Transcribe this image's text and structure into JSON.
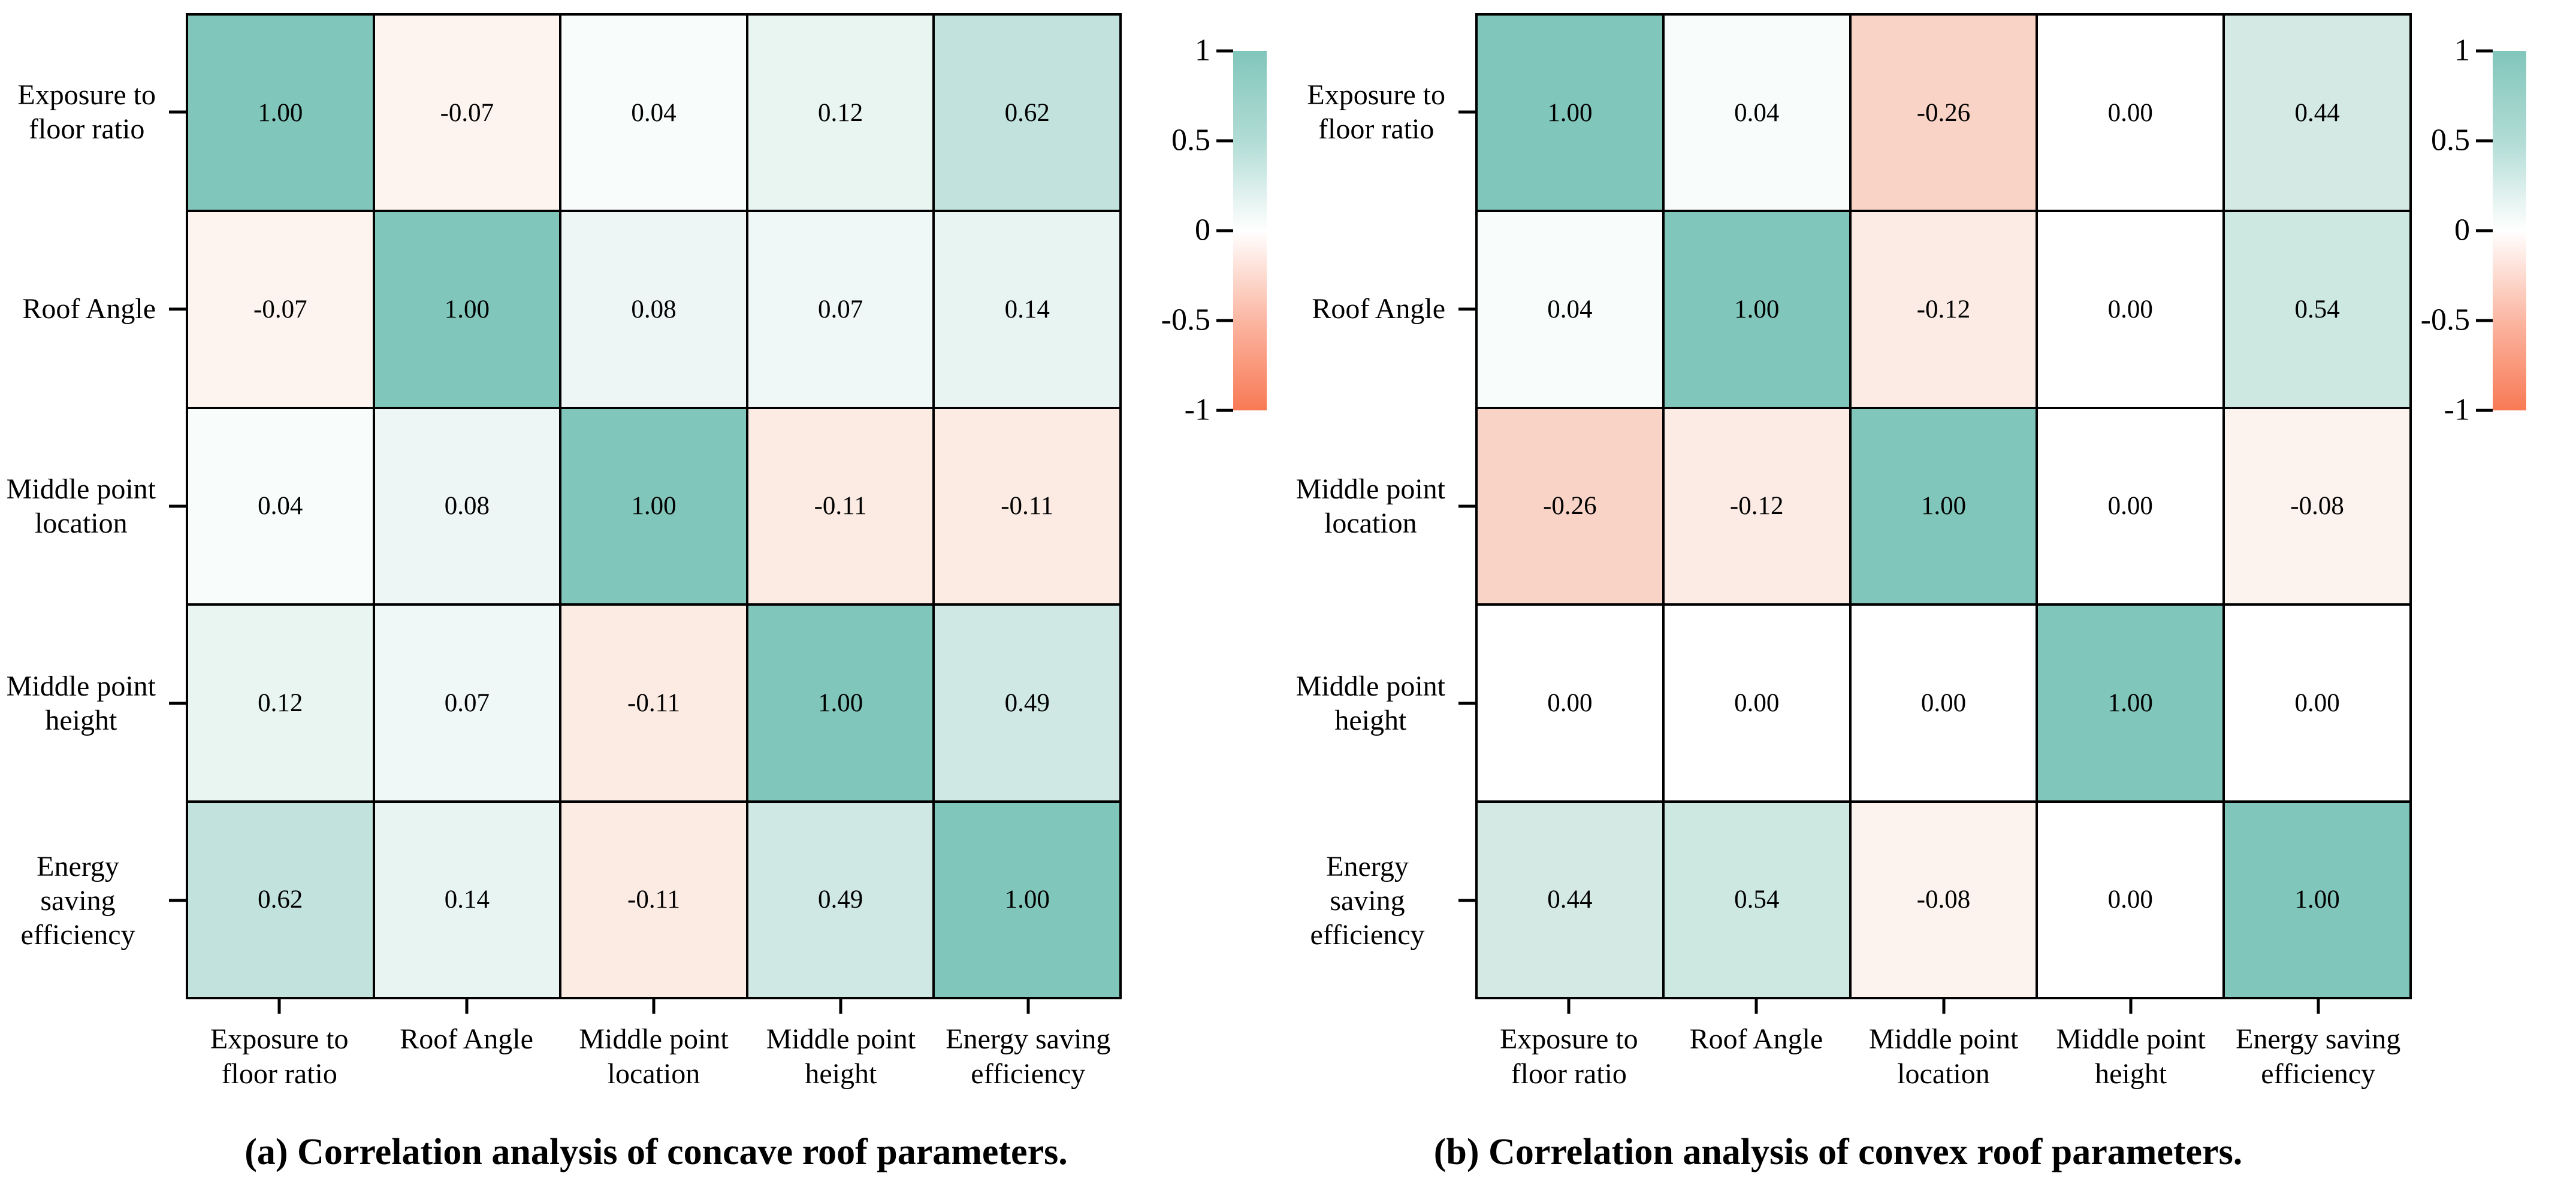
{
  "chart_data": [
    {
      "type": "heatmap",
      "panel": "a",
      "title": "(a) Correlation analysis of concave roof parameters.",
      "categories": [
        "Exposure to floor ratio",
        "Roof Angle",
        "Middle point location",
        "Middle point height",
        "Energy saving efficiency"
      ],
      "category_lines": [
        [
          "Exposure to",
          "floor ratio"
        ],
        [
          "Roof Angle"
        ],
        [
          "Middle point",
          "location"
        ],
        [
          "Middle point",
          "height"
        ],
        [
          "Energy saving",
          "efficiency"
        ]
      ],
      "matrix": [
        [
          1.0,
          -0.07,
          0.04,
          0.12,
          0.62
        ],
        [
          -0.07,
          1.0,
          0.08,
          0.07,
          0.14
        ],
        [
          0.04,
          0.08,
          1.0,
          -0.11,
          -0.11
        ],
        [
          0.12,
          0.07,
          -0.11,
          1.0,
          0.49
        ],
        [
          0.62,
          0.14,
          -0.11,
          0.49,
          1.0
        ]
      ],
      "colorbar": {
        "tick_labels": [
          "1",
          "0.5",
          "0",
          "-0.5",
          "-1"
        ],
        "max": 1,
        "min": -1,
        "position": "right"
      }
    },
    {
      "type": "heatmap",
      "panel": "b",
      "title": "(b) Correlation analysis of convex roof parameters.",
      "categories": [
        "Exposure to floor ratio",
        "Roof Angle",
        "Middle point location",
        "Middle point height",
        "Energy saving efficiency"
      ],
      "category_lines": [
        [
          "Exposure to",
          "floor ratio"
        ],
        [
          "Roof Angle"
        ],
        [
          "Middle point",
          "location"
        ],
        [
          "Middle point",
          "height"
        ],
        [
          "Energy saving",
          "efficiency"
        ]
      ],
      "matrix": [
        [
          1.0,
          0.04,
          -0.26,
          0.0,
          0.44
        ],
        [
          0.04,
          1.0,
          -0.12,
          0.0,
          0.54
        ],
        [
          -0.26,
          -0.12,
          1.0,
          0.0,
          -0.08
        ],
        [
          0.0,
          0.0,
          0.0,
          1.0,
          0.0
        ],
        [
          0.44,
          0.54,
          -0.08,
          0.0,
          1.0
        ]
      ],
      "colorbar": {
        "tick_labels": [
          "1",
          "0.5",
          "0",
          "-0.5",
          "-1"
        ],
        "max": 1,
        "min": -1,
        "position": "right"
      }
    }
  ],
  "colors": {
    "positive_end": "#81c6bb",
    "zero": "#ffffff",
    "negative_end": "#f87a55",
    "grid_line": "#000000",
    "text": "#000000",
    "value_colors": {
      "1.00": "#81c6bb",
      "0.62": "#c2e3dd",
      "0.54": "#cde7e1",
      "0.49": "#d0e8e3",
      "0.44": "#d5e9e4",
      "0.14": "#e8f4f1",
      "0.12": "#e9f5f1",
      "0.08": "#edf6f4",
      "0.07": "#f0f8f7",
      "0.04": "#f8fcfb",
      "0.00": "#ffffff",
      "-0.07": "#fdf4ef",
      "-0.08": "#fdf3ee",
      "-0.11": "#fcebe3",
      "-0.12": "#fcebe4",
      "-0.26": "#f9d3c6"
    }
  }
}
